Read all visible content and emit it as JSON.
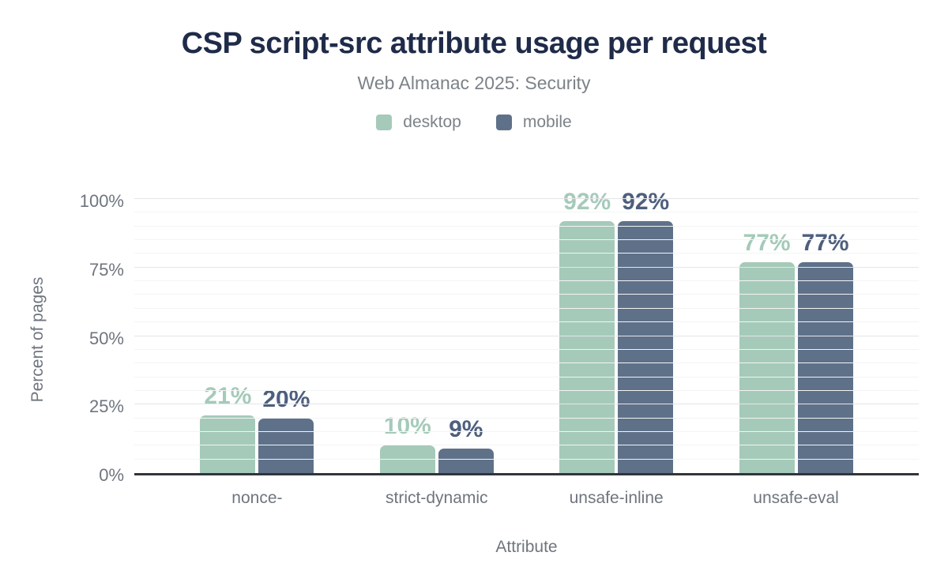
{
  "header": {
    "title": "CSP script-src attribute usage per request",
    "subtitle": "Web Almanac 2025: Security"
  },
  "colors": {
    "title": "#1f2b49",
    "subtitle_text": "#7c8288",
    "axis_text": "#6f757e",
    "axis_line": "#31353b",
    "gridline_major": "#e3e5e8",
    "gridline_minor": "#f3f4f5",
    "desktop": "#a5cab9",
    "mobile": "#5f7189",
    "mobile_label": "#4e5f7d"
  },
  "chart_data": {
    "type": "bar",
    "categories": [
      "nonce-",
      "strict-dynamic",
      "unsafe-inline",
      "unsafe-eval"
    ],
    "series": [
      {
        "name": "desktop",
        "color": "#a5cab9",
        "label_color": "#a5cab9",
        "values": [
          21,
          10,
          92,
          77
        ]
      },
      {
        "name": "mobile",
        "color": "#5f7189",
        "label_color": "#4e5f7d",
        "values": [
          20,
          9,
          92,
          77
        ]
      }
    ],
    "title": "CSP script-src attribute usage per request",
    "subtitle": "Web Almanac 2025: Security",
    "xlabel": "Attribute",
    "ylabel": "Percent of pages",
    "ylim": [
      0,
      100
    ],
    "yticks": [
      0,
      25,
      50,
      75,
      100
    ],
    "minor_step": 5,
    "grid": true,
    "legend_position": "top",
    "value_suffix": "%"
  }
}
